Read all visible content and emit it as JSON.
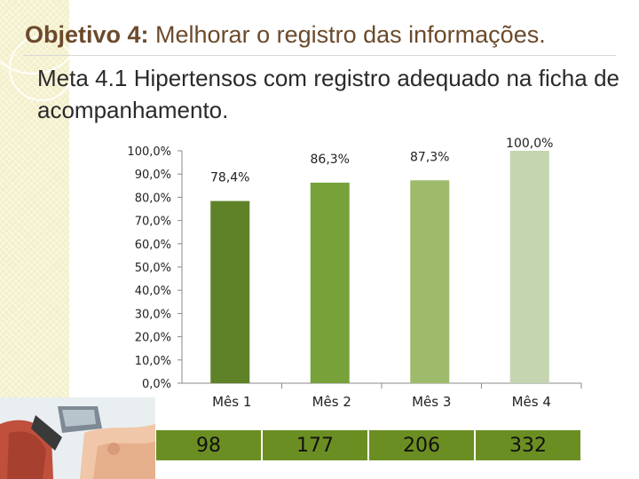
{
  "slide": {
    "title_prefix": "Objetivo 4:",
    "title_rest": " Melhorar o registro das informações.",
    "subtitle": "Meta 4.1 Hipertensos com registro adequado na ficha de acompanhamento."
  },
  "chart_data": {
    "type": "bar",
    "categories": [
      "Mês 1",
      "Mês 2",
      "Mês 3",
      "Mês 4"
    ],
    "values": [
      78.4,
      86.3,
      87.3,
      100.0
    ],
    "value_labels": [
      "78,4%",
      "86,3%",
      "87,3%",
      "100,0%"
    ],
    "ylim": [
      0,
      100
    ],
    "yticks": [
      "0,0%",
      "10,0%",
      "20,0%",
      "30,0%",
      "40,0%",
      "50,0%",
      "60,0%",
      "70,0%",
      "80,0%",
      "90,0%",
      "100,0%"
    ],
    "bar_colors": [
      "#5f8228",
      "#77a23a",
      "#9dbb6a",
      "#c4d5b0"
    ],
    "grid": false,
    "legend": "none"
  },
  "counts_row": {
    "values": [
      "98",
      "177",
      "206",
      "332"
    ],
    "color": "#6b8e23"
  }
}
